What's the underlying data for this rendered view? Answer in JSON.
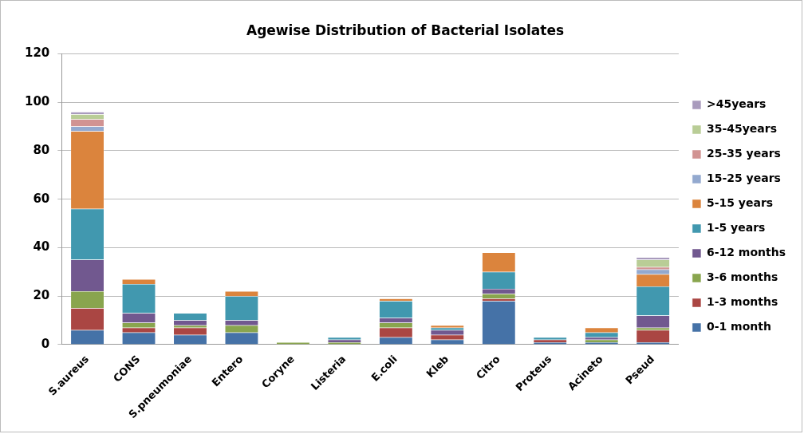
{
  "chart_data": {
    "type": "bar",
    "title": "Agewise Distribution of Bacterial Isolates",
    "stacked": true,
    "grid": "y",
    "legend": "right",
    "categories": [
      "S.aureus",
      "CONS",
      "S.pneumoniae",
      "Entero",
      "Coryne",
      "Listeria",
      "E.coli",
      "Kleb",
      "Citro",
      "Proteus",
      "Acineto",
      "Pseud"
    ],
    "ylim": [
      0,
      120
    ],
    "yticks": [
      0,
      20,
      40,
      60,
      80,
      100,
      120
    ],
    "series": [
      {
        "name": "0-1 month",
        "color": "#4572a7",
        "values": [
          6,
          5,
          4,
          5,
          0,
          0,
          3,
          2,
          18,
          1,
          1,
          1
        ]
      },
      {
        "name": "1-3 months",
        "color": "#aa4643",
        "values": [
          9,
          2,
          3,
          0,
          0,
          0,
          4,
          2,
          1,
          1,
          0,
          5
        ]
      },
      {
        "name": "3-6 months",
        "color": "#89a54e",
        "values": [
          7,
          2,
          1,
          3,
          1,
          1,
          2,
          0,
          2,
          0,
          1,
          1
        ]
      },
      {
        "name": "6-12 months",
        "color": "#71588f",
        "values": [
          13,
          4,
          2,
          2,
          0,
          1,
          2,
          2,
          2,
          0,
          1,
          5
        ]
      },
      {
        "name": "1-5 years",
        "color": "#4198af",
        "values": [
          21,
          12,
          3,
          10,
          0,
          1,
          7,
          1,
          7,
          1,
          2,
          12
        ]
      },
      {
        "name": "5-15 years",
        "color": "#db843d",
        "values": [
          32,
          2,
          0,
          2,
          0,
          0,
          1,
          1,
          8,
          0,
          2,
          5
        ]
      },
      {
        "name": "15-25 years",
        "color": "#93a9cf",
        "values": [
          2,
          0,
          0,
          0,
          0,
          0,
          0,
          0,
          0,
          0,
          0,
          2
        ]
      },
      {
        "name": "25-35 years",
        "color": "#d19392",
        "values": [
          3,
          0,
          0,
          0,
          0,
          0,
          0,
          0,
          0,
          0,
          0,
          1
        ]
      },
      {
        "name": "35-45years",
        "color": "#b9cd96",
        "values": [
          2,
          0,
          0,
          0,
          0,
          0,
          0,
          0,
          0,
          0,
          0,
          3
        ]
      },
      {
        "name": ">45years",
        "color": "#a99bbd",
        "values": [
          1,
          0,
          0,
          0,
          0,
          0,
          0,
          0,
          0,
          0,
          0,
          1
        ]
      }
    ]
  }
}
